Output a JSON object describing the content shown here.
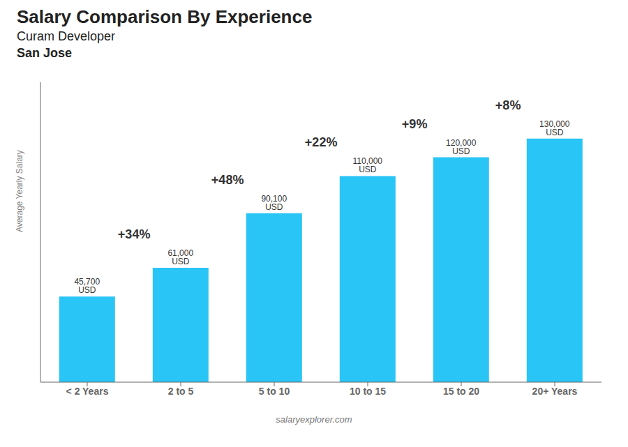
{
  "chart_data": {
    "type": "bar",
    "title": "Salary Comparison By Experience",
    "subtitle": [
      "Curam Developer",
      "San Jose"
    ],
    "ylabel": "Average Yearly Salary",
    "categories": [
      "< 2 Years",
      "2 to 5",
      "5 to 10",
      "10 to 15",
      "15 to 20",
      "20+ Years"
    ],
    "values": [
      45700,
      61000,
      90100,
      110000,
      120000,
      130000
    ],
    "value_labels": [
      "45,700 USD",
      "61,000 USD",
      "90,100 USD",
      "110,000 USD",
      "120,000 USD",
      "130,000 USD"
    ],
    "data_labels": true,
    "color": "#29c5f6",
    "ylim": [
      0,
      160000
    ],
    "tick_labels": "x",
    "grid": false,
    "annotations": [
      {
        "text": "+34%",
        "between": [
          "< 2 Years",
          "2 to 5"
        ]
      },
      {
        "text": "+48%",
        "between": [
          "2 to 5",
          "5 to 10"
        ]
      },
      {
        "text": "+22%",
        "between": [
          "5 to 10",
          "10 to 15"
        ]
      },
      {
        "text": "+9%",
        "between": [
          "10 to 15",
          "15 to 20"
        ]
      },
      {
        "text": "+8%",
        "between": [
          "15 to 20",
          "20+ Years"
        ]
      },
      {
        "text": "salaryexplorer.com"
      }
    ]
  }
}
